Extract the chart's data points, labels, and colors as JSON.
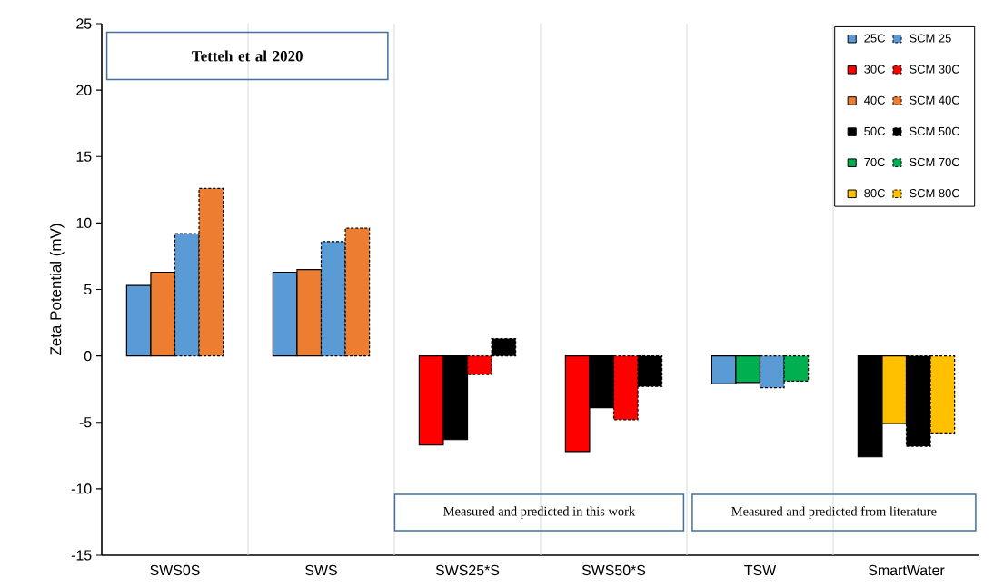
{
  "chart_data": {
    "type": "bar",
    "ylabel": "Zeta Potential (mV)",
    "categories": [
      "SWS0S",
      "SWS",
      "SWS25*S",
      "SWS50*S",
      "TSW",
      "SmartWater"
    ],
    "series": [
      {
        "name": "25C",
        "color": "#5b9bd5",
        "values": [
          5.3,
          6.3,
          null,
          null,
          -2.1,
          null
        ]
      },
      {
        "name": "30C",
        "color": "#ff0000",
        "values": [
          null,
          null,
          -6.7,
          -7.2,
          null,
          null
        ]
      },
      {
        "name": "40C",
        "color": "#ed7d31",
        "values": [
          6.3,
          6.5,
          null,
          null,
          null,
          null
        ]
      },
      {
        "name": "50C",
        "color": "#000000",
        "values": [
          null,
          null,
          -6.3,
          -3.9,
          null,
          -7.6
        ]
      },
      {
        "name": "70C",
        "color": "#00b050",
        "values": [
          null,
          null,
          null,
          null,
          -2.0,
          null
        ]
      },
      {
        "name": "80C",
        "color": "#ffc000",
        "values": [
          null,
          null,
          null,
          null,
          null,
          -5.1
        ]
      },
      {
        "name": "SCM 25",
        "color": "#5b9bd5",
        "values": [
          9.2,
          8.6,
          null,
          null,
          -2.4,
          null
        ]
      },
      {
        "name": "SCM 30C",
        "color": "#ff0000",
        "values": [
          null,
          null,
          -1.4,
          -4.8,
          null,
          null
        ]
      },
      {
        "name": "SCM 40C",
        "color": "#ed7d31",
        "values": [
          12.6,
          9.6,
          null,
          null,
          null,
          null
        ]
      },
      {
        "name": "SCM 50C",
        "color": "#000000",
        "values": [
          null,
          null,
          1.3,
          -2.3,
          null,
          -6.8
        ]
      },
      {
        "name": "SCM 70C",
        "color": "#00b050",
        "values": [
          null,
          null,
          null,
          null,
          -1.9,
          null
        ]
      },
      {
        "name": "SCM 80C",
        "color": "#ffc000",
        "values": [
          null,
          null,
          null,
          null,
          null,
          -5.8
        ]
      }
    ],
    "ylim": [
      -15,
      25
    ],
    "yticks": [
      -15,
      -10,
      -5,
      0,
      5,
      10,
      15,
      20,
      25
    ],
    "grid": "x",
    "legend": "top right",
    "annotations": [
      "Tetteh et al 2020",
      "Measured and predicted in this work",
      "Measured and predicted from literature"
    ]
  }
}
